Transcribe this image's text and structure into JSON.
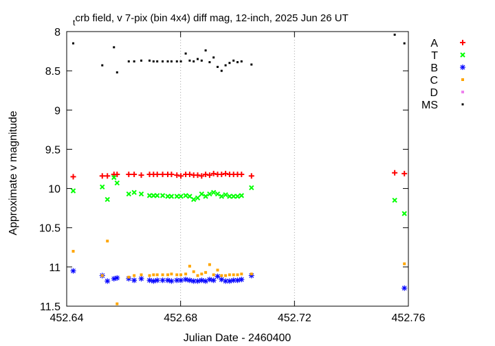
{
  "chart_data": {
    "type": "scatter",
    "title_prefix": "t",
    "title_main": "crb field, v 7-pix (bin 4x4) diff mag, 12-inch, 2025 Jun 26 UT",
    "xlabel": "Julian Date - 2460400",
    "ylabel": "Approximate v magnitude",
    "xlim": [
      452.64,
      452.76
    ],
    "ylim": [
      8,
      11.5
    ],
    "y_inverted": true,
    "grid": "dotted",
    "legend_position": "right",
    "xticks": [
      {
        "v": 452.64,
        "label": "452.64"
      },
      {
        "v": 452.68,
        "label": "452.68"
      },
      {
        "v": 452.72,
        "label": "452.72"
      },
      {
        "v": 452.76,
        "label": "452.76"
      }
    ],
    "yticks": [
      {
        "v": 8,
        "label": "8"
      },
      {
        "v": 8.5,
        "label": "8.5"
      },
      {
        "v": 9,
        "label": "9"
      },
      {
        "v": 9.5,
        "label": "9.5"
      },
      {
        "v": 10,
        "label": "10"
      },
      {
        "v": 10.5,
        "label": "10.5"
      },
      {
        "v": 11,
        "label": "11"
      },
      {
        "v": 11.5,
        "label": "11.5"
      }
    ],
    "series": [
      {
        "name": "A",
        "color": "#ff0000",
        "marker": "plus",
        "x": [
          452.6423,
          452.6525,
          452.6543,
          452.6566,
          452.6577,
          452.6618,
          452.6637,
          452.6662,
          452.6691,
          452.6705,
          452.6718,
          452.6737,
          452.6755,
          452.6768,
          452.6787,
          452.6801,
          452.6818,
          452.6832,
          452.6846,
          452.686,
          452.6874,
          452.6888,
          452.6902,
          452.6916,
          452.693,
          452.6944,
          452.6958,
          452.6972,
          452.6986,
          452.7,
          452.7014,
          452.7049,
          452.7552,
          452.7586
        ],
        "y": [
          9.85,
          9.84,
          9.84,
          9.82,
          9.82,
          9.82,
          9.82,
          9.83,
          9.82,
          9.82,
          9.82,
          9.82,
          9.82,
          9.82,
          9.83,
          9.84,
          9.82,
          9.82,
          9.83,
          9.83,
          9.84,
          9.82,
          9.83,
          9.81,
          9.82,
          9.82,
          9.81,
          9.82,
          9.82,
          9.82,
          9.82,
          9.84,
          9.8,
          9.81
        ]
      },
      {
        "name": "T",
        "color": "#00ff00",
        "marker": "x",
        "x": [
          452.6423,
          452.6525,
          452.6543,
          452.6566,
          452.6577,
          452.6618,
          452.6637,
          452.6662,
          452.6691,
          452.6705,
          452.6718,
          452.6737,
          452.6755,
          452.6768,
          452.6787,
          452.6801,
          452.6818,
          452.6832,
          452.6846,
          452.686,
          452.6874,
          452.6888,
          452.6902,
          452.6916,
          452.693,
          452.6944,
          452.6958,
          452.6972,
          452.6986,
          452.7,
          452.7014,
          452.7049,
          452.7552,
          452.7586
        ],
        "y": [
          10.03,
          9.98,
          10.14,
          9.86,
          9.93,
          10.07,
          10.05,
          10.07,
          10.09,
          10.09,
          10.09,
          10.09,
          10.1,
          10.1,
          10.1,
          10.1,
          10.09,
          10.1,
          10.14,
          10.12,
          10.07,
          10.1,
          10.07,
          10.05,
          10.07,
          10.1,
          10.08,
          10.1,
          10.1,
          10.1,
          10.09,
          9.99,
          10.15,
          10.32
        ]
      },
      {
        "name": "B",
        "color": "#0000ff",
        "marker": "star",
        "x": [
          452.6423,
          452.6525,
          452.6543,
          452.6566,
          452.6577,
          452.6618,
          452.6637,
          452.6662,
          452.6691,
          452.6705,
          452.6718,
          452.6737,
          452.6755,
          452.6768,
          452.6787,
          452.6801,
          452.6818,
          452.6832,
          452.6846,
          452.686,
          452.6874,
          452.6888,
          452.6902,
          452.6916,
          452.693,
          452.6944,
          452.6958,
          452.6972,
          452.6986,
          452.7,
          452.7014,
          452.7049,
          452.7586
        ],
        "y": [
          11.05,
          11.11,
          11.18,
          11.15,
          11.14,
          11.15,
          11.17,
          11.15,
          11.17,
          11.18,
          11.17,
          11.17,
          11.17,
          11.18,
          11.17,
          11.17,
          11.16,
          11.17,
          11.18,
          11.18,
          11.17,
          11.18,
          11.16,
          11.17,
          11.12,
          11.16,
          11.18,
          11.18,
          11.17,
          11.17,
          11.16,
          11.11,
          11.27
        ]
      },
      {
        "name": "C",
        "color": "#ffa500",
        "marker": "square",
        "x": [
          452.6423,
          452.6525,
          452.6543,
          452.6577,
          452.6618,
          452.6637,
          452.6662,
          452.6691,
          452.6705,
          452.6718,
          452.6737,
          452.6755,
          452.6768,
          452.6787,
          452.6801,
          452.6818,
          452.6832,
          452.6846,
          452.686,
          452.6874,
          452.6888,
          452.6902,
          452.6916,
          452.693,
          452.6944,
          452.6958,
          452.6972,
          452.6986,
          452.7,
          452.7014,
          452.7049,
          452.7586
        ],
        "y": [
          10.8,
          11.11,
          10.67,
          11.47,
          11.13,
          11.11,
          11.1,
          11.11,
          11.1,
          11.1,
          11.1,
          11.1,
          11.09,
          11.1,
          11.1,
          11.09,
          10.99,
          11.06,
          11.11,
          11.09,
          11.07,
          10.97,
          11.1,
          11.04,
          11.11,
          11.11,
          11.1,
          11.1,
          11.1,
          11.09,
          11.09,
          10.96
        ]
      },
      {
        "name": "D",
        "color": "#ee82ee",
        "marker": "square",
        "x": [],
        "y": []
      },
      {
        "name": "MS",
        "color": "#000000",
        "marker": "dot",
        "x": [
          452.6423,
          452.6525,
          452.6566,
          452.6577,
          452.6618,
          452.6637,
          452.6662,
          452.6691,
          452.6705,
          452.6718,
          452.6737,
          452.6755,
          452.6768,
          452.6787,
          452.6801,
          452.6818,
          452.6832,
          452.6846,
          452.686,
          452.6874,
          452.6888,
          452.6902,
          452.6916,
          452.693,
          452.6944,
          452.6958,
          452.6972,
          452.6986,
          452.7,
          452.7014,
          452.7049,
          452.7552,
          452.7586
        ],
        "y": [
          8.15,
          8.43,
          8.2,
          8.52,
          8.38,
          8.38,
          8.37,
          8.37,
          8.38,
          8.38,
          8.38,
          8.38,
          8.38,
          8.38,
          8.38,
          8.28,
          8.37,
          8.38,
          8.35,
          8.37,
          8.24,
          8.39,
          8.33,
          8.45,
          8.5,
          8.43,
          8.4,
          8.37,
          8.39,
          8.38,
          8.42,
          8.04,
          8.15
        ]
      }
    ]
  }
}
